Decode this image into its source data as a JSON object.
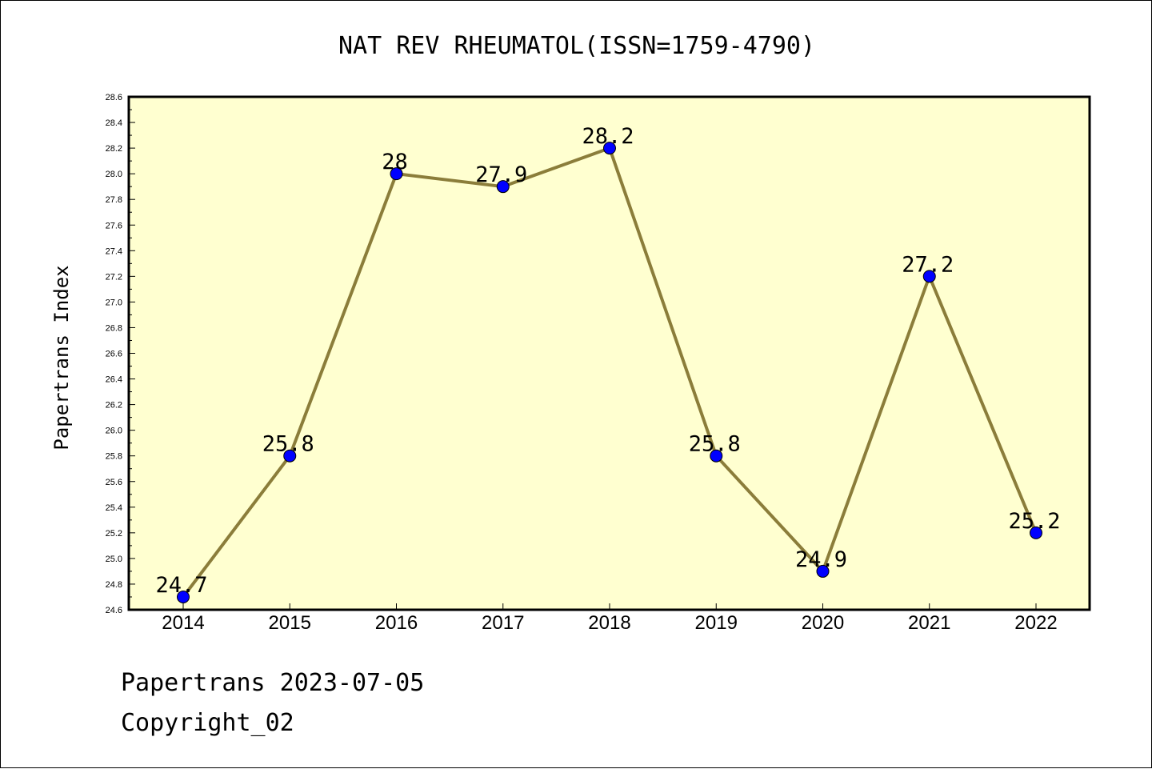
{
  "chart_data": {
    "type": "line",
    "title": "NAT REV RHEUMATOL(ISSN=1759-4790)",
    "xlabel": "",
    "ylabel": "Papertrans Index",
    "categories": [
      "2014",
      "2015",
      "2016",
      "2017",
      "2018",
      "2019",
      "2020",
      "2021",
      "2022"
    ],
    "series": [
      {
        "values": [
          24.7,
          25.8,
          28.0,
          27.9,
          28.2,
          25.8,
          24.9,
          27.2,
          25.2
        ],
        "labels": [
          "24.7",
          "25.8",
          "28",
          "27.9",
          "28.2",
          "25.8",
          "24.9",
          "27.2",
          "25.2"
        ]
      }
    ],
    "ylim": [
      24.6,
      28.6
    ],
    "yticks": [
      "24.6",
      "24.8",
      "25.0",
      "25.2",
      "25.4",
      "25.6",
      "25.8",
      "26.0",
      "26.2",
      "26.4",
      "26.6",
      "26.8",
      "27.0",
      "27.2",
      "27.4",
      "27.6",
      "27.8",
      "28.0",
      "28.2",
      "28.4",
      "28.6"
    ],
    "grid": false,
    "colors": {
      "plot_background": "#ffffd0",
      "line": "#8b7d3a",
      "marker": "#0000ff"
    }
  },
  "footer": {
    "line1": "Papertrans 2023-07-05",
    "line2": "Copyright_02"
  }
}
